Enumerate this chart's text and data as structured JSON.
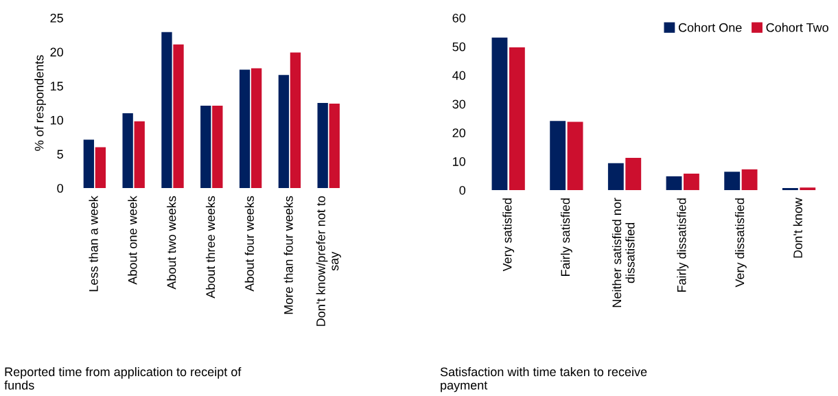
{
  "chart_data": [
    {
      "type": "bar",
      "ylabel": "% of respondents",
      "xlabel": "Reported time from application to receipt of\nfunds",
      "categories": [
        "Less than a week",
        "About one week",
        "About two weeks",
        "About three weeks",
        "About four weeks",
        "More than four weeks",
        "Don't know/prefer not to\nsay"
      ],
      "series": [
        {
          "color": "#002060",
          "values": [
            7.1,
            11.0,
            22.9,
            12.1,
            17.4,
            16.6,
            12.5
          ]
        },
        {
          "color": "#cc0f2e",
          "values": [
            6.0,
            9.8,
            21.1,
            12.1,
            17.6,
            19.9,
            12.4
          ]
        }
      ],
      "ylim": [
        0,
        25
      ],
      "yticks": [
        0,
        5,
        10,
        15,
        20,
        25
      ],
      "grid": false,
      "legend": false
    },
    {
      "type": "bar",
      "xlabel": "Satisfaction with time taken to receive\npayment",
      "categories": [
        "Very satisfied",
        "Fairly satisfied",
        "Neither satisfied nor\ndissatisfied",
        "Fairly dissatisfied",
        "Very dissatisfied",
        "Don't know"
      ],
      "series": [
        {
          "name": "Cohort One",
          "color": "#002060",
          "values": [
            53.1,
            24.1,
            9.4,
            4.8,
            6.4,
            0.7
          ]
        },
        {
          "name": "Cohort Two",
          "color": "#cc0f2e",
          "values": [
            49.7,
            23.8,
            11.2,
            5.7,
            7.2,
            0.9
          ]
        }
      ],
      "ylim": [
        0,
        60
      ],
      "yticks": [
        0,
        10,
        20,
        30,
        40,
        50,
        60
      ],
      "grid": false,
      "legend": "top right"
    }
  ]
}
